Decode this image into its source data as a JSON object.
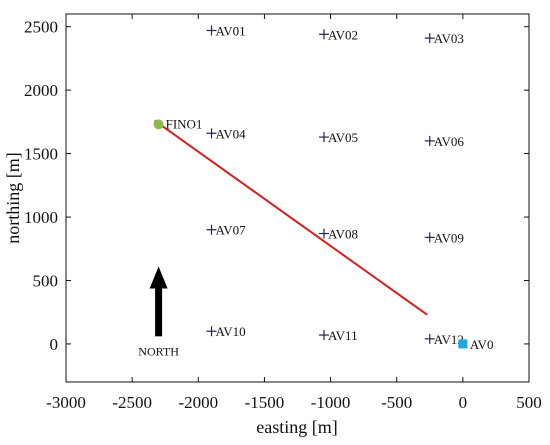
{
  "chart_data": {
    "type": "scatter",
    "xlabel": "easting [m]",
    "ylabel": "northing [m]",
    "xlim": [
      -3000,
      500
    ],
    "ylim": [
      -300,
      2600
    ],
    "xticks": [
      -3000,
      -2500,
      -2000,
      -1500,
      -1000,
      -500,
      0,
      500
    ],
    "yticks": [
      0,
      500,
      1000,
      1500,
      2000,
      2500
    ],
    "grid": false,
    "turbines": [
      {
        "label": "AV01",
        "x": -1900,
        "y": 2470
      },
      {
        "label": "AV02",
        "x": -1050,
        "y": 2440
      },
      {
        "label": "AV03",
        "x": -250,
        "y": 2410
      },
      {
        "label": "AV04",
        "x": -1900,
        "y": 1660
      },
      {
        "label": "AV05",
        "x": -1050,
        "y": 1630
      },
      {
        "label": "AV06",
        "x": -250,
        "y": 1600
      },
      {
        "label": "AV07",
        "x": -1900,
        "y": 900
      },
      {
        "label": "AV08",
        "x": -1050,
        "y": 870
      },
      {
        "label": "AV09",
        "x": -250,
        "y": 840
      },
      {
        "label": "AV10",
        "x": -1900,
        "y": 100
      },
      {
        "label": "AV11",
        "x": -1050,
        "y": 70
      },
      {
        "label": "AV12",
        "x": -250,
        "y": 40
      }
    ],
    "reference_point": {
      "label": "AV0",
      "x": 0,
      "y": 0,
      "color": "#1ea7e1"
    },
    "fino1": {
      "label": "FINO1",
      "x": -2300,
      "y": 1730,
      "color": "#8db84a"
    },
    "line": {
      "color": "#d4201f",
      "points": [
        {
          "x": -2330,
          "y": 1760
        },
        {
          "x": -270,
          "y": 230
        }
      ]
    },
    "north_arrow": {
      "label": "NORTH",
      "x": -2300,
      "y_start": 60,
      "y_end": 610,
      "color": "#000000"
    },
    "turbine_marker_color": "#20205a"
  }
}
